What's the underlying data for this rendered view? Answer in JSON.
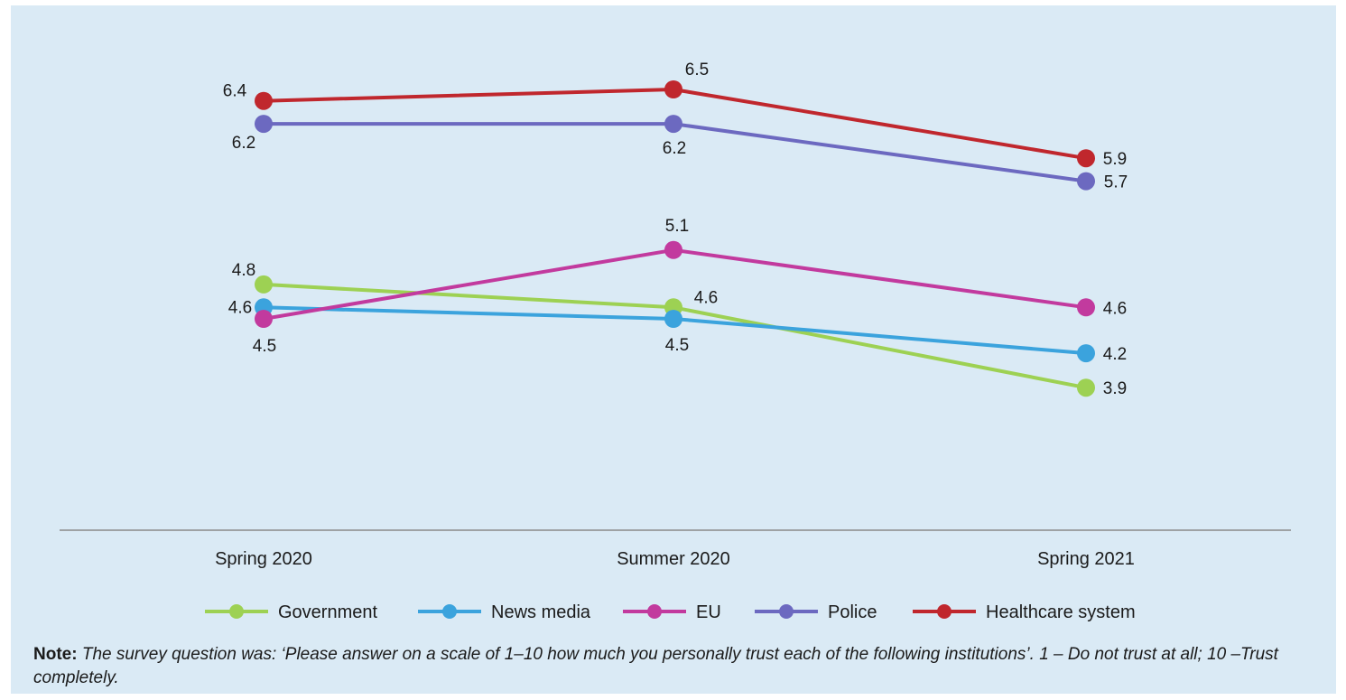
{
  "chart_data": {
    "type": "line",
    "categories": [
      "Spring 2020",
      "Summer 2020",
      "Spring 2021"
    ],
    "ylim": [
      3,
      7
    ],
    "grid": false,
    "legend_position": "bottom",
    "series": [
      {
        "name": "Government",
        "color": "#9dd153",
        "values": [
          4.8,
          4.6,
          3.9
        ],
        "labels": [
          "4.8",
          "4.6",
          "3.9"
        ]
      },
      {
        "name": "News media",
        "color": "#3ba3dd",
        "values": [
          4.6,
          4.5,
          4.2
        ],
        "labels": [
          "4.6",
          "4.5",
          "4.2"
        ]
      },
      {
        "name": "EU",
        "color": "#c23a9e",
        "values": [
          4.5,
          5.1,
          4.6
        ],
        "labels": [
          "4.5",
          "5.1",
          "4.6"
        ]
      },
      {
        "name": "Police",
        "color": "#6c69c0",
        "values": [
          6.2,
          6.2,
          5.7
        ],
        "labels": [
          "6.2",
          "6.2",
          "5.7"
        ]
      },
      {
        "name": "Healthcare system",
        "color": "#c0272d",
        "values": [
          6.4,
          6.5,
          5.9
        ],
        "labels": [
          "6.4",
          "6.5",
          "5.9"
        ]
      }
    ]
  },
  "note": {
    "label": "Note:",
    "text": " The survey question was: ‘Please answer on a scale of 1–10 how much you personally trust each of the following institutions’. 1 – Do not trust at all; 10 –Trust completely."
  }
}
